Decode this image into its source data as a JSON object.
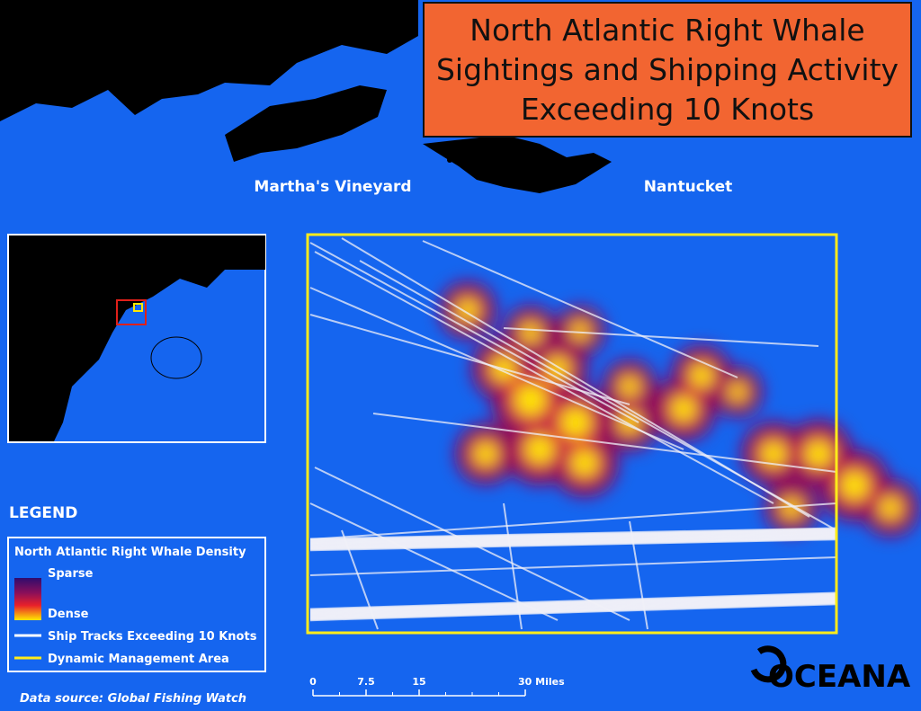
{
  "header": {
    "title": "North Atlantic Right Whale Sightings and Shipping Activity Exceeding 10 Knots"
  },
  "places": [
    "Martha's Vineyard",
    "Nantucket"
  ],
  "legend": {
    "heading": "LEGEND",
    "density_title": "North Atlantic Right Whale Density",
    "sparse": "Sparse",
    "dense": "Dense",
    "tracks": "Ship Tracks Exceeding 10 Knots",
    "dma": "Dynamic Management Area"
  },
  "scale_bar": {
    "ticks": [
      0,
      7.5,
      15,
      {
        "value": 30,
        "label": "30 Miles"
      }
    ]
  },
  "source": "Data source: Global Fishing Watch",
  "logo": "OCEANA"
}
